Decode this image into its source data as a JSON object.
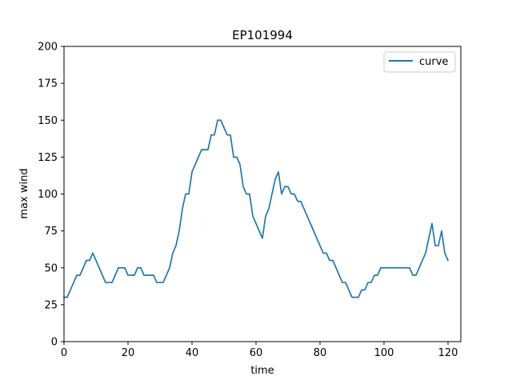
{
  "chart_data": {
    "type": "line",
    "title": "EP101994",
    "xlabel": "time",
    "ylabel": "max wind",
    "xlim": [
      0,
      124
    ],
    "ylim": [
      0,
      200
    ],
    "xticks": [
      "0",
      "20",
      "40",
      "60",
      "80",
      "100",
      "120"
    ],
    "yticks": [
      "0",
      "25",
      "50",
      "75",
      "100",
      "125",
      "150",
      "175",
      "200"
    ],
    "grid": false,
    "legend_position": "top-right",
    "series": [
      {
        "name": "curve",
        "color": "#1f77b4",
        "x": [
          0,
          1,
          2,
          3,
          4,
          5,
          6,
          7,
          8,
          9,
          10,
          11,
          12,
          13,
          14,
          15,
          16,
          17,
          18,
          19,
          20,
          21,
          22,
          23,
          24,
          25,
          26,
          27,
          28,
          29,
          30,
          31,
          32,
          33,
          34,
          35,
          36,
          37,
          38,
          39,
          40,
          41,
          42,
          43,
          44,
          45,
          46,
          47,
          48,
          49,
          50,
          51,
          52,
          53,
          54,
          55,
          56,
          57,
          58,
          59,
          60,
          61,
          62,
          63,
          64,
          65,
          66,
          67,
          68,
          69,
          70,
          71,
          72,
          73,
          74,
          75,
          76,
          77,
          78,
          79,
          80,
          81,
          82,
          83,
          84,
          85,
          86,
          87,
          88,
          89,
          90,
          91,
          92,
          93,
          94,
          95,
          96,
          97,
          98,
          99,
          100,
          101,
          102,
          103,
          104,
          105,
          106,
          107,
          108,
          109,
          110,
          111,
          112,
          113,
          114,
          115,
          116,
          117,
          118,
          119,
          120
        ],
        "y": [
          30,
          30,
          35,
          40,
          45,
          45,
          50,
          55,
          55,
          60,
          55,
          50,
          45,
          40,
          40,
          40,
          45,
          50,
          50,
          50,
          45,
          45,
          45,
          50,
          50,
          45,
          45,
          45,
          45,
          40,
          40,
          40,
          45,
          50,
          60,
          65,
          75,
          90,
          100,
          100,
          115,
          120,
          125,
          130,
          130,
          130,
          140,
          140,
          150,
          150,
          145,
          140,
          140,
          125,
          125,
          120,
          105,
          100,
          100,
          85,
          80,
          75,
          70,
          85,
          90,
          100,
          110,
          115,
          100,
          105,
          105,
          100,
          100,
          95,
          95,
          90,
          85,
          80,
          75,
          70,
          65,
          60,
          60,
          55,
          55,
          50,
          45,
          40,
          40,
          35,
          30,
          30,
          30,
          35,
          35,
          40,
          40,
          45,
          45,
          50,
          50,
          50,
          50,
          50,
          50,
          50,
          50,
          50,
          50,
          45,
          45,
          50,
          55,
          60,
          70,
          80,
          65,
          65,
          75,
          60,
          55
        ]
      }
    ]
  }
}
